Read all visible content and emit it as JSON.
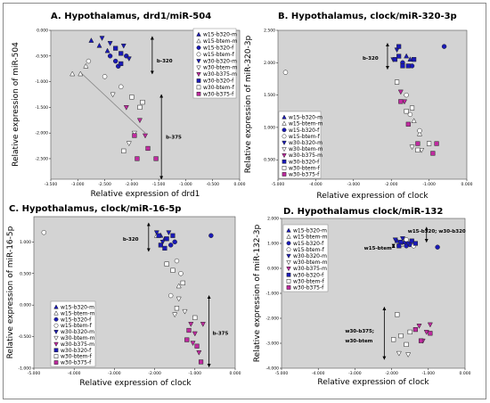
{
  "chart_data": [
    {
      "type": "scatter",
      "title": "A.  Hypothalamus, drd1/miR-504",
      "xlabel": "Relative expression of drd1",
      "ylabel": "Relative expression of miR-504",
      "xlim": [
        -3.5,
        0.0
      ],
      "ylim": [
        -2.9,
        0.0
      ],
      "x_ticks": [
        "-3.500",
        "-3.000",
        "-2.500",
        "-2.000",
        "-1.500",
        "-1.000",
        "-0.500",
        "0.000"
      ],
      "y_ticks": [
        "0.000",
        "-0.500",
        "-1.000",
        "-1.500",
        "-2.000",
        "-2.500"
      ],
      "grid": false,
      "legend_position": "top-right",
      "annotations": [
        {
          "text": "b-320",
          "arrow": [
            -1.62,
            -0.12,
            -1.62,
            -0.85
          ]
        },
        {
          "text": "b-375",
          "arrow": [
            -1.45,
            -1.25,
            -1.45,
            -2.9
          ]
        }
      ],
      "trendline": [
        [
          -2.95,
          -0.82
        ],
        [
          -1.75,
          -2.0
        ]
      ],
      "series": [
        {
          "name": "w15-b320-m",
          "values": [
            [
              -2.75,
              -0.2
            ],
            [
              -2.6,
              -0.3
            ],
            [
              -2.45,
              -0.4
            ]
          ]
        },
        {
          "name": "w15-btem-m",
          "values": [
            [
              -3.1,
              -0.85
            ],
            [
              -2.95,
              -0.85
            ],
            [
              -2.85,
              -0.7
            ]
          ]
        },
        {
          "name": "w15-b320-f",
          "values": [
            [
              -2.4,
              -0.5
            ],
            [
              -2.3,
              -0.6
            ],
            [
              -2.25,
              -0.7
            ],
            [
              -2.1,
              -0.5
            ]
          ]
        },
        {
          "name": "w15-btem-f",
          "values": [
            [
              -2.8,
              -0.6
            ],
            [
              -2.5,
              -0.9
            ],
            [
              -2.2,
              -1.1
            ]
          ]
        },
        {
          "name": "w30-b320-m",
          "values": [
            [
              -2.55,
              -0.15
            ],
            [
              -2.4,
              -0.25
            ],
            [
              -2.15,
              -0.3
            ],
            [
              -2.05,
              -0.55
            ]
          ]
        },
        {
          "name": "w30-btem-m",
          "values": [
            [
              -2.35,
              -1.25
            ],
            [
              -2.05,
              -2.2
            ],
            [
              -1.95,
              -2.0
            ]
          ]
        },
        {
          "name": "w30-b375-m",
          "values": [
            [
              -2.1,
              -1.5
            ],
            [
              -1.85,
              -1.75
            ],
            [
              -1.75,
              -2.05
            ]
          ]
        },
        {
          "name": "w30-b320-f",
          "values": [
            [
              -2.3,
              -0.35
            ],
            [
              -2.2,
              -0.45
            ],
            [
              -2.2,
              -0.65
            ]
          ]
        },
        {
          "name": "w30-btem-f",
          "values": [
            [
              -2.0,
              -1.3
            ],
            [
              -1.85,
              -1.5
            ],
            [
              -2.15,
              -2.35
            ],
            [
              -1.8,
              -1.4
            ]
          ]
        },
        {
          "name": "w30-b375-f",
          "values": [
            [
              -1.95,
              -2.05
            ],
            [
              -1.7,
              -2.3
            ],
            [
              -1.55,
              -2.5
            ],
            [
              -1.9,
              -2.5
            ]
          ]
        }
      ]
    },
    {
      "type": "scatter",
      "title": "B.  Hypothalamus, clock/miR-320-3p",
      "xlabel": "Relative expression of clock",
      "ylabel": "Relative expression of miR-320-3p",
      "xlim": [
        -5.0,
        0.0
      ],
      "ylim": [
        0.2,
        2.5
      ],
      "x_ticks": [
        "-5.000",
        "-4.000",
        "-3.000",
        "-2.000",
        "-1.000",
        "0.000"
      ],
      "y_ticks": [
        "2.500",
        "2.000",
        "1.500",
        "1.000",
        "0.500"
      ],
      "grid": false,
      "legend_position": "bottom-left",
      "annotations": [
        {
          "text": "b-320",
          "arrow": [
            -2.1,
            2.3,
            -2.1,
            1.9
          ]
        }
      ],
      "series": [
        {
          "name": "w15-b320-m",
          "values": [
            [
              -1.6,
              2.1
            ],
            [
              -1.5,
              2.05
            ]
          ]
        },
        {
          "name": "w15-btem-m",
          "values": [
            [
              -1.4,
              1.1
            ],
            [
              -1.25,
              0.9
            ]
          ]
        },
        {
          "name": "w15-b320-f",
          "values": [
            [
              -1.45,
              1.95
            ],
            [
              -0.6,
              2.25
            ],
            [
              -1.7,
              2.0
            ]
          ]
        },
        {
          "name": "w15-btem-f",
          "values": [
            [
              -4.8,
              1.85
            ],
            [
              -1.25,
              0.95
            ],
            [
              -1.6,
              1.5
            ],
            [
              -1.5,
              1.2
            ]
          ]
        },
        {
          "name": "w30-b320-m",
          "values": [
            [
              -1.85,
              2.2
            ],
            [
              -1.95,
              2.05
            ]
          ]
        },
        {
          "name": "w30-btem-m",
          "values": [
            [
              -1.45,
              0.7
            ],
            [
              -1.2,
              0.65
            ]
          ]
        },
        {
          "name": "w30-b375-m",
          "values": [
            [
              -1.75,
              1.55
            ],
            [
              -1.65,
              1.4
            ]
          ]
        },
        {
          "name": "w30-b320-f",
          "values": [
            [
              -1.9,
              2.05
            ],
            [
              -1.8,
              2.1
            ],
            [
              -1.7,
              1.95
            ],
            [
              -1.55,
              1.95
            ],
            [
              -1.4,
              2.05
            ],
            [
              -1.8,
              2.25
            ]
          ]
        },
        {
          "name": "w30-btem-f",
          "values": [
            [
              -1.85,
              1.7
            ],
            [
              -1.6,
              1.25
            ],
            [
              -1.45,
              1.3
            ],
            [
              -1.0,
              0.75
            ],
            [
              -1.3,
              0.65
            ]
          ]
        },
        {
          "name": "w30-b375-f",
          "values": [
            [
              -1.75,
              1.4
            ],
            [
              -1.55,
              1.05
            ],
            [
              -1.3,
              0.75
            ],
            [
              -0.8,
              0.75
            ],
            [
              -0.9,
              0.6
            ]
          ]
        }
      ]
    },
    {
      "type": "scatter",
      "title": "C.  Hypothalamus, clock/miR-16-5p",
      "xlabel": "Relative expression of clock",
      "ylabel": "Relative expression of miR-16-5p",
      "xlim": [
        -5.0,
        0.0
      ],
      "ylim": [
        -1.0,
        1.4
      ],
      "x_ticks": [
        "-5.000",
        "-4.000",
        "-3.000",
        "-2.000",
        "-1.000",
        "0.000"
      ],
      "y_ticks": [
        "1.000",
        "0.500",
        "0.000",
        "-0.500",
        "-1.000"
      ],
      "grid": false,
      "legend_position": "bottom-left",
      "annotations": [
        {
          "text": "b-320",
          "arrow": [
            -2.15,
            1.3,
            -2.15,
            0.85
          ]
        },
        {
          "text": "b-375",
          "arrow": [
            -0.65,
            0.15,
            -0.65,
            -0.98
          ]
        }
      ],
      "series": [
        {
          "name": "w15-b320-m",
          "values": [
            [
              -1.85,
              1.1
            ],
            [
              -1.75,
              1.05
            ]
          ]
        },
        {
          "name": "w15-btem-m",
          "values": [
            [
              -1.95,
              1.1
            ],
            [
              -1.4,
              0.3
            ]
          ]
        },
        {
          "name": "w15-b320-f",
          "values": [
            [
              -1.6,
              0.95
            ],
            [
              -0.6,
              1.1
            ],
            [
              -1.5,
              1.0
            ]
          ]
        },
        {
          "name": "w15-btem-f",
          "values": [
            [
              -4.75,
              1.15
            ],
            [
              -1.45,
              0.7
            ],
            [
              -1.35,
              0.5
            ],
            [
              -1.6,
              0.15
            ]
          ]
        },
        {
          "name": "w30-b320-m",
          "values": [
            [
              -1.95,
              1.15
            ],
            [
              -1.65,
              1.15
            ],
            [
              -1.8,
              1.0
            ]
          ]
        },
        {
          "name": "w30-btem-m",
          "values": [
            [
              -1.4,
              0.1
            ],
            [
              -1.5,
              -0.15
            ],
            [
              -1.25,
              -0.1
            ]
          ]
        },
        {
          "name": "w30-b375-m",
          "values": [
            [
              -1.1,
              -0.3
            ],
            [
              -1.0,
              -0.45
            ],
            [
              -0.9,
              -0.75
            ],
            [
              -1.05,
              -0.6
            ],
            [
              -0.8,
              -0.3
            ]
          ]
        },
        {
          "name": "w30-b320-f",
          "values": [
            [
              -1.9,
              1.1
            ],
            [
              -1.75,
              0.9
            ],
            [
              -1.7,
              1.05
            ],
            [
              -1.55,
              1.1
            ],
            [
              -1.85,
              0.95
            ]
          ]
        },
        {
          "name": "w30-btem-f",
          "values": [
            [
              -1.7,
              0.65
            ],
            [
              -1.55,
              0.55
            ],
            [
              -1.3,
              0.35
            ],
            [
              -1.45,
              -0.05
            ],
            [
              -1.0,
              -0.2
            ]
          ]
        },
        {
          "name": "w30-b375-f",
          "values": [
            [
              -1.15,
              -0.4
            ],
            [
              -0.95,
              -0.65
            ],
            [
              -1.2,
              -0.55
            ],
            [
              -0.85,
              -0.9
            ]
          ]
        }
      ]
    },
    {
      "type": "scatter",
      "title": "D.  Hypothalamus clock/miR-132",
      "xlabel": "Relative expression of clock",
      "ylabel": "Relative expression of miR-132-3p",
      "xlim": [
        -5.0,
        0.0
      ],
      "ylim": [
        -4.0,
        2.0
      ],
      "x_ticks": [
        "-5.000",
        "-4.000",
        "-3.000",
        "-2.000",
        "-1.000",
        "0.000"
      ],
      "y_ticks": [
        "2.000",
        "1.000",
        "0.000",
        "-1.000",
        "-2.000",
        "-3.000",
        "-4.000"
      ],
      "grid": false,
      "legend_position": "top-left",
      "annotations": [
        {
          "text": "w15-b320; w30-b320",
          "arrow": [
            -1.05,
            1.65,
            -1.05,
            1.05
          ]
        },
        {
          "text": "w15-btem",
          "arrow": [
            -1.95,
            0.85,
            -1.95,
            0.95
          ]
        },
        {
          "text": "w30-b375;",
          "arrow": [
            -2.2,
            -1.55,
            -2.2,
            -3.65
          ]
        },
        {
          "text": "w30-btem",
          "arrow": null
        }
      ],
      "series": [
        {
          "name": "w15-b320-m",
          "values": [
            [
              -1.85,
              1.1
            ],
            [
              -1.65,
              1.05
            ]
          ]
        },
        {
          "name": "w15-btem-m",
          "values": [
            [
              -1.75,
              0.95
            ]
          ]
        },
        {
          "name": "w15-b320-f",
          "values": [
            [
              -1.5,
              0.95
            ],
            [
              -0.75,
              0.85
            ],
            [
              -1.6,
              0.9
            ]
          ]
        },
        {
          "name": "w15-btem-f",
          "values": [
            [
              -1.6,
              1.15
            ],
            [
              -1.4,
              0.9
            ]
          ]
        },
        {
          "name": "w30-b320-m",
          "values": [
            [
              -1.9,
              1.15
            ],
            [
              -1.7,
              1.2
            ],
            [
              -1.55,
              1.0
            ]
          ]
        },
        {
          "name": "w30-btem-m",
          "values": [
            [
              -1.8,
              -3.4
            ],
            [
              -1.55,
              -3.45
            ]
          ]
        },
        {
          "name": "w30-b375-m",
          "values": [
            [
              -1.25,
              -2.3
            ],
            [
              -1.05,
              -2.55
            ],
            [
              -0.95,
              -2.25
            ],
            [
              -1.15,
              -2.9
            ]
          ]
        },
        {
          "name": "w30-b320-f",
          "values": [
            [
              -1.75,
              1.05
            ],
            [
              -1.45,
              1.1
            ],
            [
              -1.35,
              1.0
            ],
            [
              -1.8,
              0.9
            ]
          ]
        },
        {
          "name": "w30-btem-f",
          "values": [
            [
              -1.85,
              -1.85
            ],
            [
              -1.75,
              -2.7
            ],
            [
              -1.5,
              -2.55
            ],
            [
              -1.6,
              -3.05
            ],
            [
              -1.95,
              -2.85
            ]
          ]
        },
        {
          "name": "w30-b375-f",
          "values": [
            [
              -1.35,
              -2.45
            ],
            [
              -1.2,
              -2.9
            ],
            [
              -0.95,
              -2.6
            ]
          ]
        }
      ]
    }
  ],
  "legend_items": [
    {
      "name": "w15-b320-m",
      "marker": "triangle-up",
      "fill": "#1a1ab8"
    },
    {
      "name": "w15-btem-m",
      "marker": "triangle-up",
      "fill": "#ffffff"
    },
    {
      "name": "w15-b320-f",
      "marker": "circle",
      "fill": "#1a1ab8"
    },
    {
      "name": "w15-btem-f",
      "marker": "circle",
      "fill": "#ffffff"
    },
    {
      "name": "w30-b320-m",
      "marker": "triangle-down",
      "fill": "#1a1ab8"
    },
    {
      "name": "w30-btem-m",
      "marker": "triangle-down",
      "fill": "#ffffff"
    },
    {
      "name": "w30-b375-m",
      "marker": "triangle-down",
      "fill": "#c02aa0"
    },
    {
      "name": "w30-b320-f",
      "marker": "square",
      "fill": "#1a1ab8"
    },
    {
      "name": "w30-btem-f",
      "marker": "square",
      "fill": "#ffffff"
    },
    {
      "name": "w30-b375-f",
      "marker": "square",
      "fill": "#c02aa0"
    }
  ],
  "colors": {
    "plot_background": "#d3d3d3",
    "blue": "#1a1ab8",
    "magenta": "#c02aa0",
    "white": "#ffffff"
  }
}
